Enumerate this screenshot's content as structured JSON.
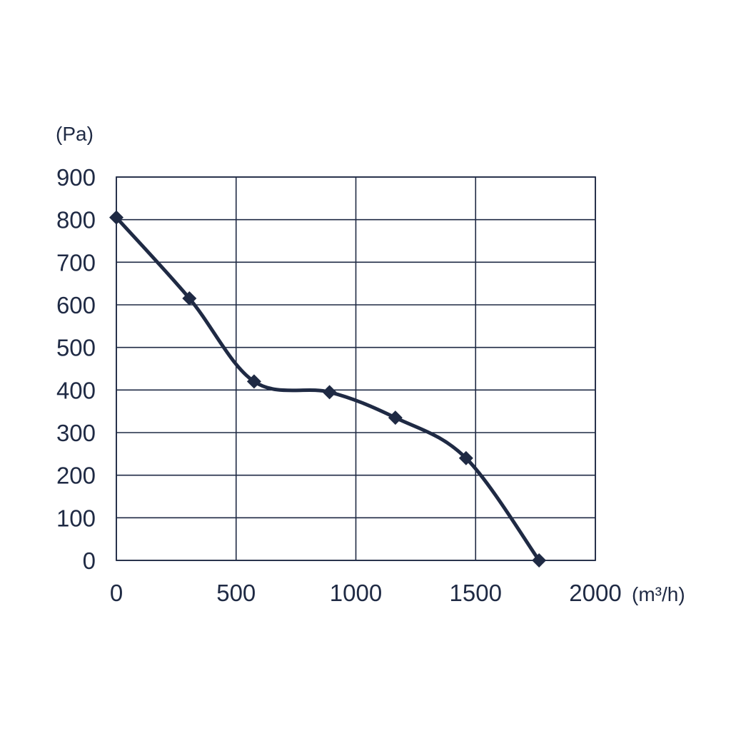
{
  "chart_data": {
    "type": "line",
    "title": "",
    "xlabel": "",
    "ylabel": "",
    "x_unit": "(m³/h)",
    "y_unit": "(Pa)",
    "xlim": [
      0,
      2000
    ],
    "ylim": [
      0,
      900
    ],
    "x_ticks": [
      0,
      500,
      1000,
      1500,
      2000
    ],
    "y_ticks": [
      0,
      100,
      200,
      300,
      400,
      500,
      600,
      700,
      800,
      900
    ],
    "grid": true,
    "legend": "none",
    "marker": "diamond",
    "line_color": "#1f2a44",
    "series": [
      {
        "x": [
          0,
          305,
          575,
          890,
          1165,
          1460,
          1765
        ],
        "y": [
          805,
          615,
          420,
          395,
          335,
          240,
          0
        ]
      }
    ]
  }
}
